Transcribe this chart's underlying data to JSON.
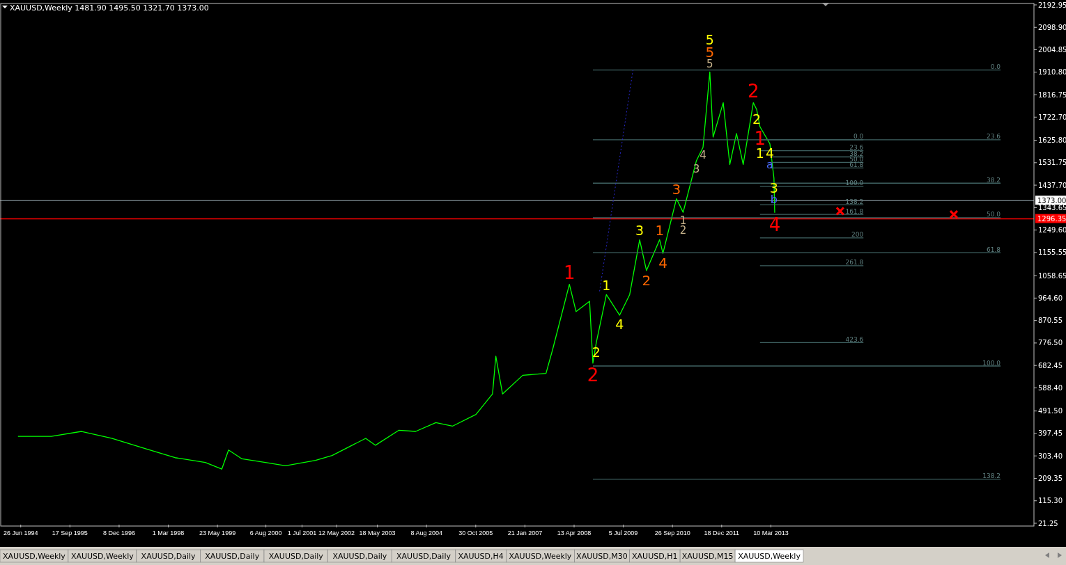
{
  "chart_data": {
    "type": "line",
    "title": "XAUUSD,Weekly  1481.90 1495.50 1321.70 1373.00",
    "xlim": [
      "1994-01-01",
      "2019-10-01"
    ],
    "xticks": [
      {
        "value": "1994-06-26",
        "label": "26 Jun 1994"
      },
      {
        "value": "1995-09-17",
        "label": "17 Sep 1995"
      },
      {
        "value": "1996-12-08",
        "label": "8 Dec 1996"
      },
      {
        "value": "1998-03-01",
        "label": "1 Mar 1998"
      },
      {
        "value": "1999-05-23",
        "label": "23 May 1999"
      },
      {
        "value": "2000-08-06",
        "label": "6 Aug 2000"
      },
      {
        "value": "2001-07-01",
        "label": "1 Jul 2001"
      },
      {
        "value": "2002-05-12",
        "label": "12 May 2002"
      },
      {
        "value": "2003-05-18",
        "label": "18 May 2003"
      },
      {
        "value": "2004-08-08",
        "label": "8 Aug 2004"
      },
      {
        "value": "2005-10-30",
        "label": "30 Oct 2005"
      },
      {
        "value": "2007-01-21",
        "label": "21 Jan 2007"
      },
      {
        "value": "2008-04-13",
        "label": "13 Apr 2008"
      },
      {
        "value": "2009-07-05",
        "label": "5 Jul 2009"
      },
      {
        "value": "2010-09-26",
        "label": "26 Sep 2010"
      },
      {
        "value": "2011-12-18",
        "label": "18 Dec 2011"
      },
      {
        "value": "2013-03-10",
        "label": "10 Mar 2013"
      }
    ],
    "ylim": [
      21.25,
      2192.95
    ],
    "yticks": [
      2192.95,
      {
        "value": 2098.9,
        "label": "2098.90"
      },
      2004.85,
      {
        "value": 1910.8,
        "label": "1910.80"
      },
      1816.75,
      {
        "value": 1722.7,
        "label": "1722.70"
      },
      {
        "value": 1625.8,
        "label": "1625.80"
      },
      1531.75,
      {
        "value": 1437.7,
        "label": "1437.70"
      },
      1343.65,
      {
        "value": 1249.6,
        "label": "1249.60"
      },
      1155.55,
      1058.65,
      {
        "value": 964.6,
        "label": "964.60"
      },
      870.55,
      {
        "value": 776.5,
        "label": "776.50"
      },
      682.45,
      {
        "value": 588.4,
        "label": "588.40"
      },
      {
        "value": 491.5,
        "label": "491.50"
      },
      397.45,
      {
        "value": 303.4,
        "label": "303.40"
      },
      209.35,
      {
        "value": 115.3,
        "label": "115.30"
      },
      21.25
    ],
    "ref_lines": [
      {
        "axis": "y",
        "value": 1373,
        "label": "1373.00",
        "color": "#8fa0a8"
      },
      {
        "axis": "y",
        "value": 1296.35,
        "label": "1296.35",
        "color": "#ff0000"
      }
    ],
    "series": [
      {
        "color": "#00ff00",
        "x": [
          "1994-06",
          "1995-04",
          "1996-01",
          "1996-10",
          "1997-08",
          "1998-05",
          "1999-02",
          "1999-07",
          "1999-09",
          "2000-01",
          "2000-08",
          "2001-02",
          "2001-11",
          "2002-04",
          "2002-10",
          "2003-02",
          "2003-05",
          "2003-12",
          "2004-05",
          "2004-11",
          "2005-04",
          "2005-11",
          "2006-04",
          "2006-05",
          "2006-07",
          "2007-01",
          "2007-08",
          "2007-10",
          "2008-03",
          "2008-05",
          "2008-09",
          "2008-10",
          "2008-11",
          "2009-02",
          "2009-06",
          "2009-09",
          "2009-12",
          "2010-02",
          "2010-06",
          "2010-07",
          "2010-11",
          "2011-01",
          "2011-05",
          "2011-07",
          "2011-09",
          "2011-10",
          "2012-01",
          "2012-03",
          "2012-05",
          "2012-07",
          "2012-10",
          "2012-11",
          "2012-12",
          "2013-03",
          "2013-04-07",
          "2013-04-14"
        ],
        "values": [
          385,
          385,
          406,
          377,
          334,
          296,
          276,
          248,
          328,
          291,
          276,
          262,
          285,
          305,
          348,
          377,
          348,
          411,
          406,
          443,
          428,
          477,
          563,
          721,
          563,
          641,
          649,
          750,
          1022,
          908,
          951,
          692,
          778,
          979,
          893,
          979,
          1209,
          1080,
          1209,
          1152,
          1381,
          1324,
          1539,
          1596,
          1912,
          1639,
          1783,
          1524,
          1654,
          1524,
          1783,
          1754,
          1682,
          1611,
          1467,
          1322
        ]
      },
      {
        "type": "line",
        "color": "#3f6262",
        "x": [
          "2008-10",
          "2018-12"
        ],
        "values": [
          1920,
          1920
        ]
      },
      {
        "type": "line",
        "color": "#3f6262",
        "x": [
          "2008-10",
          "2018-12"
        ],
        "values": [
          1628,
          1628
        ]
      },
      {
        "type": "line",
        "color": "#3f6262",
        "x": [
          "2008-10",
          "2018-12"
        ],
        "values": [
          1446,
          1446
        ]
      },
      {
        "type": "line",
        "color": "#3f6262",
        "x": [
          "2008-10",
          "2018-12"
        ],
        "values": [
          1301,
          1301
        ]
      },
      {
        "type": "line",
        "color": "#3f6262",
        "x": [
          "2008-10",
          "2018-12"
        ],
        "values": [
          1155,
          1155
        ]
      },
      {
        "type": "line",
        "color": "#3f6262",
        "x": [
          "2008-10",
          "2018-12"
        ],
        "values": [
          680,
          680
        ]
      },
      {
        "type": "line",
        "color": "#3f6262",
        "x": [
          "2008-10",
          "2018-12"
        ],
        "values": [
          206,
          206
        ]
      },
      {
        "type": "line",
        "color": "#3f6262",
        "x": [
          "2012-12",
          "2015-07"
        ],
        "values": [
          1628,
          1628
        ]
      },
      {
        "type": "line",
        "color": "#3f6262",
        "x": [
          "2012-12",
          "2015-07"
        ],
        "values": [
          1582,
          1582
        ]
      },
      {
        "type": "line",
        "color": "#3f6262",
        "x": [
          "2013-03",
          "2015-07"
        ],
        "values": [
          1556,
          1556
        ]
      },
      {
        "type": "line",
        "color": "#3f6262",
        "x": [
          "2013-03",
          "2015-07"
        ],
        "values": [
          1533,
          1533
        ]
      },
      {
        "type": "line",
        "color": "#3f6262",
        "x": [
          "2013-03",
          "2015-07"
        ],
        "values": [
          1510,
          1510
        ]
      },
      {
        "type": "line",
        "color": "#3f6262",
        "x": [
          "2012-12",
          "2015-07"
        ],
        "values": [
          1433,
          1433
        ]
      },
      {
        "type": "line",
        "color": "#3f6262",
        "x": [
          "2012-12",
          "2015-07"
        ],
        "values": [
          1355,
          1355
        ]
      },
      {
        "type": "line",
        "color": "#3f6262",
        "x": [
          "2012-12",
          "2015-07"
        ],
        "values": [
          1315,
          1315
        ]
      },
      {
        "type": "line",
        "color": "#3f6262",
        "x": [
          "2012-12",
          "2015-07"
        ],
        "values": [
          1217,
          1217
        ]
      },
      {
        "type": "line",
        "color": "#3f6262",
        "x": [
          "2012-12",
          "2015-07"
        ],
        "values": [
          1100,
          1100
        ]
      },
      {
        "type": "line",
        "color": "#3f6262",
        "x": [
          "2012-12",
          "2015-07"
        ],
        "values": [
          778,
          778
        ]
      },
      {
        "type": "line",
        "color": "#2828c8",
        "line_style": "dotted",
        "x": [
          "2008-12",
          "2009-10"
        ],
        "values": [
          993,
          1920
        ]
      },
      {
        "type": "scatter",
        "marker": "cross",
        "color": "#ff0000",
        "x": [
          "2014-12",
          "2017-10"
        ],
        "values": [
          1329,
          1315
        ]
      }
    ],
    "annotations": [
      {
        "text": "1",
        "x": "2008-03",
        "y": 1022
      },
      {
        "text": "2",
        "x": "2008-10",
        "y": 692
      },
      {
        "text": "2",
        "x": "2012-10",
        "y": 1783
      },
      {
        "text": "1",
        "x": "2012-12",
        "y": 1682
      },
      {
        "text": "4",
        "x": "2013-04-14",
        "y": 1322
      },
      {
        "text": "5",
        "x": "2011-09",
        "y": 1912
      },
      {
        "text": "5",
        "x": "2011-09",
        "y": 1912
      },
      {
        "text": "5",
        "x": "2011-09",
        "y": 1912
      },
      {
        "text": "3",
        "x": "2010-11",
        "y": 1381
      },
      {
        "text": "1",
        "x": "2010-06",
        "y": 1209
      },
      {
        "text": "4",
        "x": "2010-07",
        "y": 1152
      },
      {
        "text": "2",
        "x": "2010-02",
        "y": 1080
      },
      {
        "text": "3",
        "x": "2009-12",
        "y": 1209
      },
      {
        "text": "1",
        "x": "2009-02",
        "y": 979
      },
      {
        "text": "4",
        "x": "2009-06",
        "y": 893
      },
      {
        "text": "2",
        "x": "2008-11",
        "y": 778
      },
      {
        "text": "2",
        "x": "2012-11",
        "y": 1754
      },
      {
        "text": "1",
        "x": "2012-12",
        "y": 1682
      },
      {
        "text": "4",
        "x": "2013-03",
        "y": 1611
      },
      {
        "text": "3",
        "x": "2013-04-07",
        "y": 1467
      },
      {
        "text": "3",
        "x": "2011-05",
        "y": 1539
      },
      {
        "text": "1",
        "x": "2011-01",
        "y": 1324
      },
      {
        "text": "4",
        "x": "2011-07",
        "y": 1596
      },
      {
        "text": "2",
        "x": "2011-01",
        "y": 1324
      },
      {
        "text": "a",
        "x": "2013-03",
        "y": 1611
      },
      {
        "text": "b",
        "x": "2013-04-07",
        "y": 1467
      },
      {
        "text": "0.0",
        "x": "2018-12",
        "y": 1920
      },
      {
        "text": "23.6",
        "x": "2018-12",
        "y": 1628
      },
      {
        "text": "38.2",
        "x": "2018-12",
        "y": 1446
      },
      {
        "text": "50.0",
        "x": "2018-12",
        "y": 1301
      },
      {
        "text": "61.8",
        "x": "2018-12",
        "y": 1155
      },
      {
        "text": "100.0",
        "x": "2018-12",
        "y": 680
      },
      {
        "text": "138.2",
        "x": "2018-12",
        "y": 206
      },
      {
        "text": "0.0",
        "x": "2015-07",
        "y": 1628
      },
      {
        "text": "23.6",
        "x": "2015-07",
        "y": 1582
      },
      {
        "text": "38.2",
        "x": "2015-07",
        "y": 1556
      },
      {
        "text": "50.0",
        "x": "2015-07",
        "y": 1533
      },
      {
        "text": "61.8",
        "x": "2015-07",
        "y": 1510
      },
      {
        "text": "100.0",
        "x": "2015-07",
        "y": 1433
      },
      {
        "text": "138.2",
        "x": "2015-07",
        "y": 1355
      },
      {
        "text": "161.8",
        "x": "2015-07",
        "y": 1315
      },
      {
        "text": "200",
        "x": "2015-07",
        "y": 1217
      },
      {
        "text": "261.8",
        "x": "2015-07",
        "y": 1100
      },
      {
        "text": "423.6",
        "x": "2015-07",
        "y": 778
      },
      "XAUUSD,Weekly",
      "XAUUSD,Weekly",
      "XAUUSD,Daily",
      "XAUUSD,Daily",
      "XAUUSD,Daily",
      "XAUUSD,Daily",
      "XAUUSD,Daily",
      "XAUUSD,H4",
      "XAUUSD,Weekly",
      "XAUUSD,M30",
      "XAUUSD,H1",
      "XAUUSD,M15",
      "XAUUSD,Weekly"
    ]
  }
}
